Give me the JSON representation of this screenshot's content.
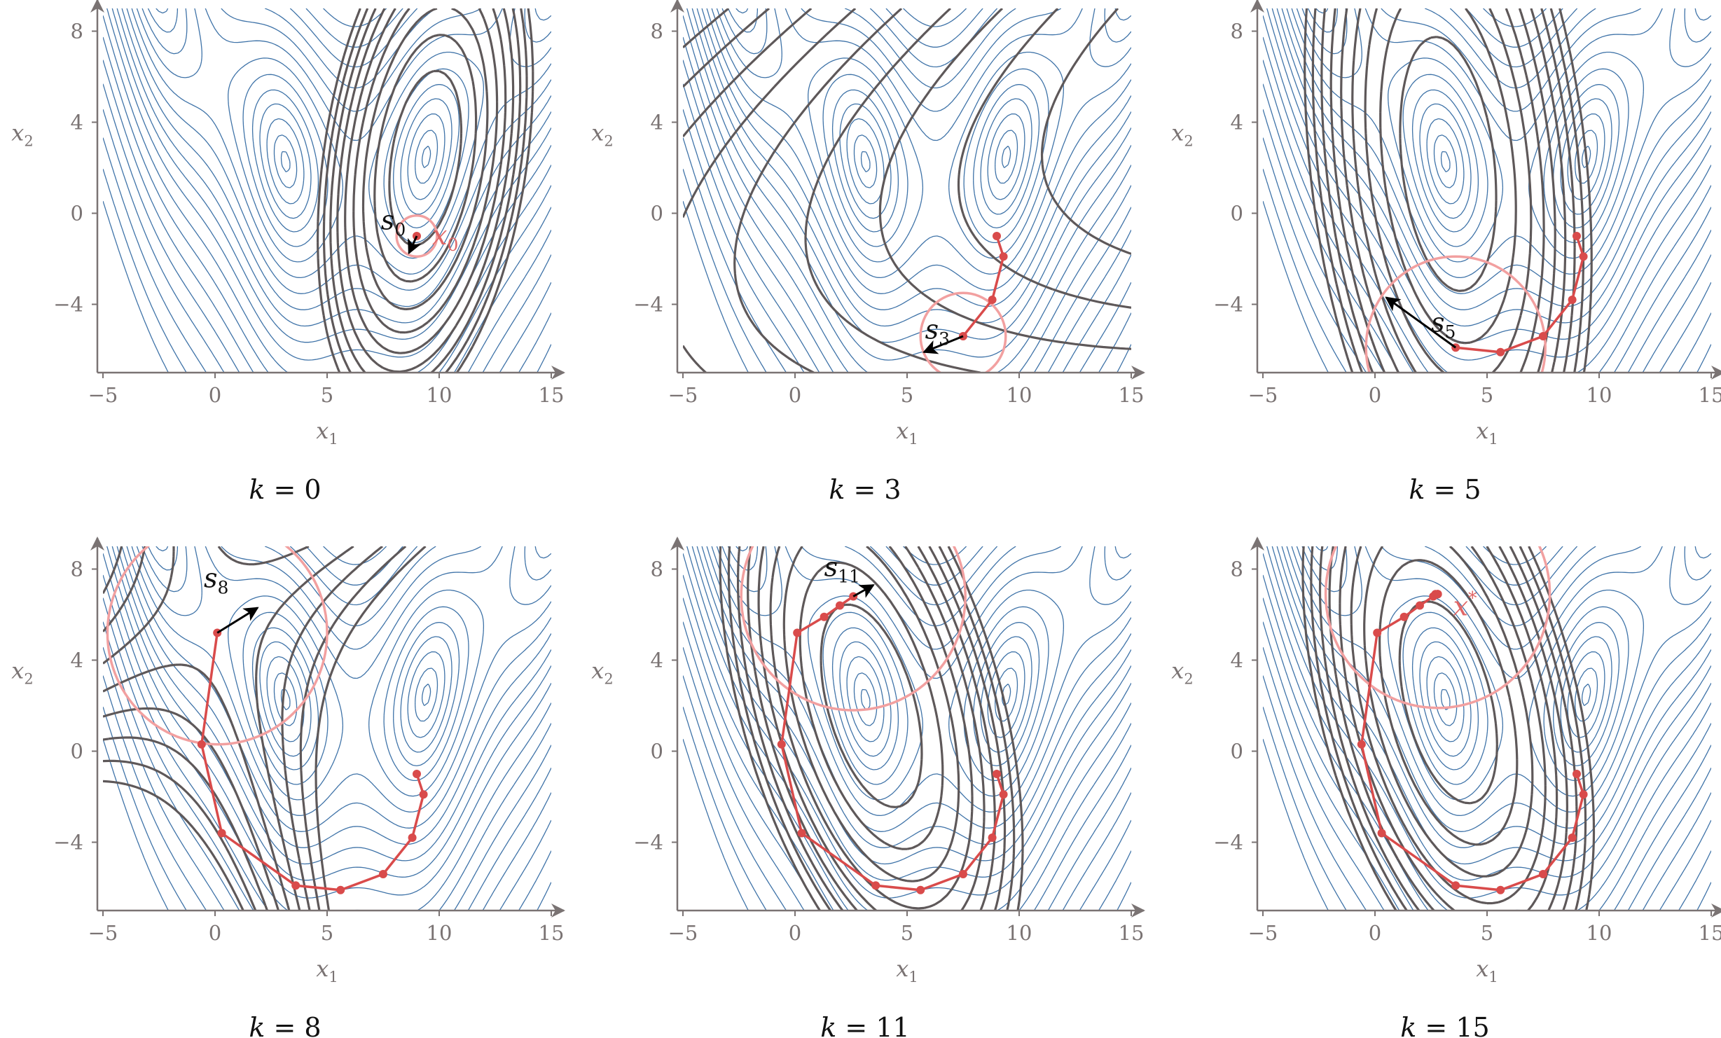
{
  "colors": {
    "objective_contour": "#3f73a8",
    "model_contour": "#5e5859",
    "path": "#d94b4b",
    "trust_region": "#f2a0a0",
    "step_arrow": "#000000",
    "axis": "#7a7373"
  },
  "axes": {
    "xlabel": "x",
    "xlabel_sub": "1",
    "ylabel": "x",
    "ylabel_sub": "2",
    "xticks": [
      "−5",
      "0",
      "5",
      "10",
      "15"
    ],
    "yticks": [
      "−4",
      "0",
      "4",
      "8"
    ]
  },
  "panels": [
    {
      "caption_k": "k",
      "caption_rest": " = 0",
      "step_label": "s",
      "step_sub": "0",
      "point_label": "x",
      "point_sub": "0"
    },
    {
      "caption_k": "k",
      "caption_rest": " = 3",
      "step_label": "s",
      "step_sub": "3"
    },
    {
      "caption_k": "k",
      "caption_rest": " = 5",
      "step_label": "s",
      "step_sub": "5"
    },
    {
      "caption_k": "k",
      "caption_rest": " = 8",
      "step_label": "s",
      "step_sub": "8"
    },
    {
      "caption_k": "k",
      "caption_rest": " = 11",
      "step_label": "s",
      "step_sub": "11"
    },
    {
      "caption_k": "k",
      "caption_rest": " = 15",
      "point_label": "x",
      "point_sup": "*"
    }
  ],
  "chart_data": {
    "type": "line",
    "xlim": [
      -5,
      15
    ],
    "ylim": [
      -7,
      9
    ],
    "iterates": {
      "x": [
        9.0,
        9.3,
        8.8,
        7.5,
        5.6,
        3.6,
        0.3,
        -0.6,
        0.1,
        1.3,
        2.0,
        2.6,
        2.7,
        2.8,
        2.8,
        2.8
      ],
      "y": [
        -1.0,
        -1.9,
        -3.8,
        -5.4,
        -6.1,
        -5.9,
        -3.6,
        0.3,
        5.2,
        5.9,
        6.4,
        6.8,
        6.9,
        6.9,
        6.9,
        6.9
      ]
    },
    "panels": [
      {
        "k": 0,
        "trust_radius": 0.9,
        "step": [
          -0.35,
          -0.75
        ]
      },
      {
        "k": 3,
        "trust_radius": 1.9,
        "step": [
          -1.75,
          -0.7
        ]
      },
      {
        "k": 5,
        "trust_radius": 4.0,
        "step": [
          -3.1,
          2.2
        ]
      },
      {
        "k": 8,
        "trust_radius": 4.9,
        "step": [
          1.8,
          1.1
        ]
      },
      {
        "k": 11,
        "trust_radius": 5.0,
        "step": [
          0.9,
          0.5
        ]
      },
      {
        "k": 15,
        "trust_radius": 5.0
      }
    ]
  }
}
